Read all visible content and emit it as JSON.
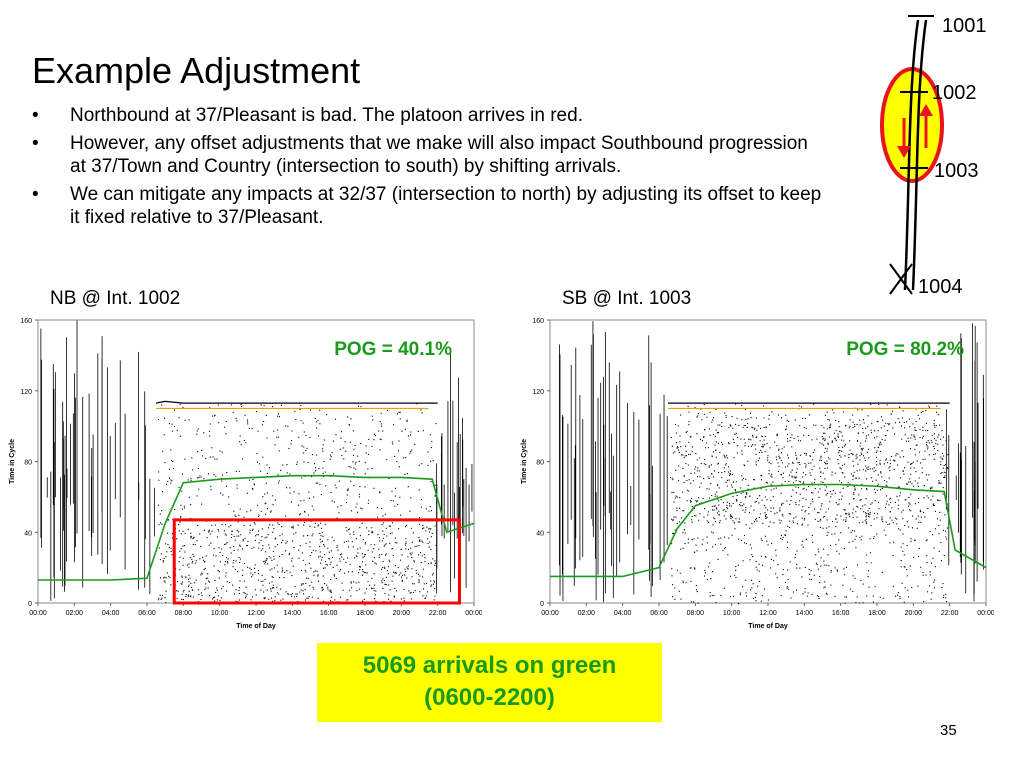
{
  "slide": {
    "title": "Example Adjustment",
    "bullets": [
      "Northbound at 37/Pleasant is bad. The platoon arrives in red.",
      "However, any offset adjustments that we make will also impact Southbound progression at 37/Town and Country (intersection to south) by shifting arrivals.",
      "We can mitigate any impacts at 32/37 (intersection to north) by adjusting its offset to keep it fixed relative to 37/Pleasant."
    ],
    "bullet_symbol": "•",
    "page_number": "35"
  },
  "map": {
    "intersections": [
      "1001",
      "1002",
      "1003",
      "1004"
    ],
    "highlight_color": "#ffff00",
    "ring_color": "#e8141b",
    "arrow_color": "#e8141b"
  },
  "callout": {
    "line1": "5069 arrivals on green",
    "line2": "(0600-2200)",
    "background": "#ffff00",
    "text_color": "#1a9a1a"
  },
  "chart_data": [
    {
      "type": "scatter",
      "title": "NB @ Int. 1002",
      "annotation": "POG = 40.1%",
      "xlabel": "Time of Day",
      "ylabel": "Time in Cycle",
      "x_ticks": [
        "00:00",
        "02:00",
        "04:00",
        "06:00",
        "08:00",
        "10:00",
        "12:00",
        "14:00",
        "16:00",
        "18:00",
        "20:00",
        "22:00",
        "00:00"
      ],
      "y_ticks": [
        "0",
        "40",
        "80",
        "120",
        "160"
      ],
      "xlim": [
        0,
        24
      ],
      "ylim": [
        0,
        160
      ],
      "grid": false,
      "series": [
        {
          "name": "",
          "color": "#000000",
          "values": [
            [
              6.5,
              113
            ],
            [
              7,
              114
            ],
            [
              8,
              113
            ],
            [
              10,
              113
            ],
            [
              12,
              113
            ],
            [
              14,
              113
            ],
            [
              16,
              113
            ],
            [
              18,
              113
            ],
            [
              20,
              113
            ],
            [
              22,
              113
            ]
          ]
        },
        {
          "name": "",
          "color": "#1a9a1a",
          "values": [
            [
              0,
              13
            ],
            [
              4,
              13
            ],
            [
              6,
              14
            ],
            [
              7,
              45
            ],
            [
              8,
              68
            ],
            [
              10,
              70
            ],
            [
              12,
              71
            ],
            [
              14,
              72
            ],
            [
              16,
              72
            ],
            [
              18,
              71
            ],
            [
              20,
              71
            ],
            [
              21.7,
              70
            ],
            [
              22.5,
              40
            ],
            [
              24,
              45
            ]
          ]
        },
        {
          "name": "",
          "color": "#ff9900",
          "values": [
            [
              6.5,
              110
            ],
            [
              10,
              110
            ],
            [
              14,
              110
            ],
            [
              18,
              110
            ],
            [
              21.5,
              110
            ]
          ]
        }
      ],
      "highlight_box": {
        "x_range": [
          7.5,
          23.2
        ],
        "y_range": [
          0,
          47
        ],
        "color": "#ff0000"
      }
    },
    {
      "type": "scatter",
      "title": "SB @ Int. 1003",
      "annotation": "POG = 80.2%",
      "xlabel": "Time of Day",
      "ylabel": "Time in Cycle",
      "x_ticks": [
        "00:00",
        "02:00",
        "04:00",
        "06:00",
        "08:00",
        "10:00",
        "12:00",
        "14:00",
        "16:00",
        "18:00",
        "20:00",
        "22:00",
        "00:00"
      ],
      "y_ticks": [
        "0",
        "40",
        "80",
        "120",
        "160"
      ],
      "xlim": [
        0,
        24
      ],
      "ylim": [
        0,
        160
      ],
      "grid": false,
      "series": [
        {
          "name": "",
          "color": "#000000",
          "values": [
            [
              6.5,
              113
            ],
            [
              10,
              113
            ],
            [
              14,
              113
            ],
            [
              18,
              113
            ],
            [
              22,
              113
            ]
          ]
        },
        {
          "name": "",
          "color": "#1a9a1a",
          "values": [
            [
              0,
              15
            ],
            [
              4,
              15
            ],
            [
              6,
              20
            ],
            [
              7,
              42
            ],
            [
              8,
              55
            ],
            [
              10,
              62
            ],
            [
              12,
              66
            ],
            [
              14,
              67
            ],
            [
              16,
              67
            ],
            [
              18,
              66
            ],
            [
              20,
              64
            ],
            [
              21.7,
              63
            ],
            [
              22.3,
              30
            ],
            [
              24,
              20
            ]
          ]
        },
        {
          "name": "",
          "color": "#ff9900",
          "values": [
            [
              6.5,
              110
            ],
            [
              10,
              110
            ],
            [
              14,
              110
            ],
            [
              18,
              110
            ],
            [
              21.5,
              110
            ]
          ]
        }
      ]
    }
  ]
}
